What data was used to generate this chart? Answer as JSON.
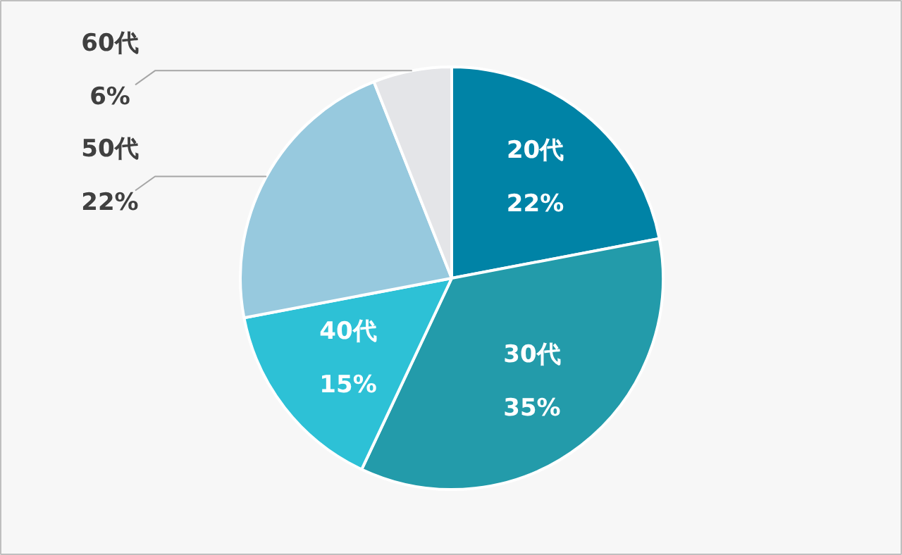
{
  "chart_data": {
    "type": "pie",
    "categories": [
      "20代",
      "30代",
      "40代",
      "50代",
      "60代"
    ],
    "values": [
      22,
      35,
      15,
      22,
      6
    ],
    "value_labels": [
      "22%",
      "35%",
      "15%",
      "22%",
      "6%"
    ],
    "colors": [
      "#0083a6",
      "#239baa",
      "#2dc1d6",
      "#97c9de",
      "#e4e5e8"
    ]
  }
}
